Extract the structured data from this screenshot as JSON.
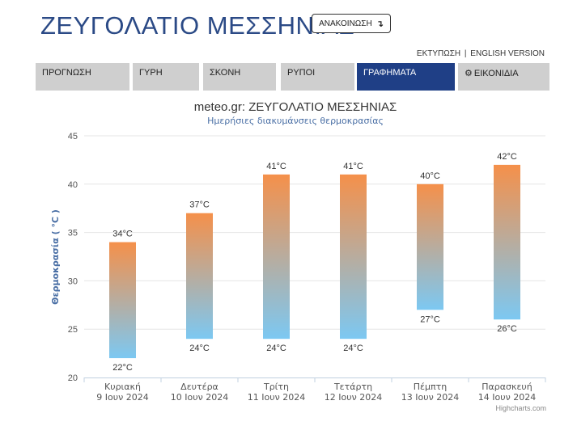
{
  "header": {
    "site_title": "ΖΕΥΓΟΛΑΤΙΟ ΜΕΣΣΗΝΙΑΣ",
    "announce_label": "ΑΝΑΚΟΙΝΩΣΗ",
    "announce_icon": "↴",
    "print_link": "ΕΚΤΥΠΩΣΗ",
    "separator": "|",
    "english_link": "ENGLISH VERSION"
  },
  "nav": {
    "tabs": [
      {
        "label": "ΠΡΟΓΝΩΣΗ",
        "active": false
      },
      {
        "label": "ΓΥΡΗ",
        "active": false
      },
      {
        "label": "ΣΚΟΝΗ",
        "active": false
      },
      {
        "label": "ΡΥΠΟΙ",
        "active": false
      },
      {
        "label": "ΓΡΑΦΗΜΑΤΑ",
        "active": true
      },
      {
        "label": "ΕΙΚΟΝΙΔΙΑ",
        "active": false,
        "icon": "gear-icon"
      }
    ],
    "active_color": "#1f3f86",
    "inactive_color": "#cfcfcf"
  },
  "chart_data": {
    "type": "bar",
    "subtype": "columnrange",
    "title": "meteo.gr: ΖΕΥΓΟΛΑΤΙΟ ΜΕΣΣΗΝΙΑΣ",
    "subtitle": "Ημερήσιες διακυμάνσεις θερμοκρασίας",
    "ylabel": "Θερμοκρασία ( °C )",
    "xlabel": "",
    "ylim": [
      20,
      45
    ],
    "yticks": [
      20,
      25,
      30,
      35,
      40,
      45
    ],
    "grid": true,
    "categories": [
      {
        "day": "Κυριακή",
        "date": "9 Ιουν 2024"
      },
      {
        "day": "Δευτέρα",
        "date": "10 Ιουν 2024"
      },
      {
        "day": "Τρίτη",
        "date": "11 Ιουν 2024"
      },
      {
        "day": "Τετάρτη",
        "date": "12 Ιουν 2024"
      },
      {
        "day": "Πέμπτη",
        "date": "13 Ιουν 2024"
      },
      {
        "day": "Παρασκευή",
        "date": "14 Ιουν 2024"
      }
    ],
    "low": [
      22,
      24,
      24,
      24,
      27,
      26
    ],
    "high": [
      34,
      37,
      41,
      41,
      40,
      42
    ],
    "unit": "°C",
    "color_top": "#f5904a",
    "color_bottom": "#7cc8f2"
  },
  "credit": "Highcharts.com"
}
